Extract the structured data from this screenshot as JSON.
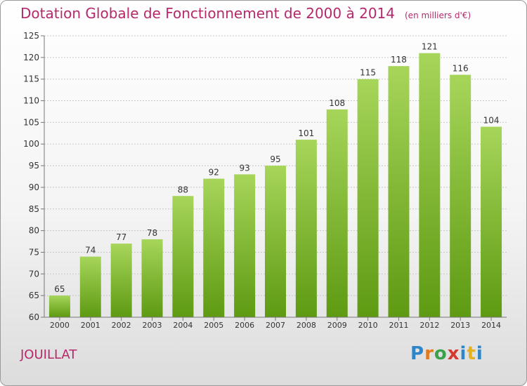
{
  "header": {
    "title": "Dotation Globale de Fonctionnement de 2000 à 2014",
    "subtitle": "(en milliers d'€)"
  },
  "footer": {
    "commune": "JOUILLAT",
    "brand": "Proxiti"
  },
  "colors": {
    "title": "#b5286a",
    "bar_top": "#a6d55a",
    "bar_bottom": "#5e9a12",
    "grid": "#c8c8c8"
  },
  "chart_data": {
    "type": "bar",
    "categories": [
      "2000",
      "2001",
      "2002",
      "2003",
      "2004",
      "2005",
      "2006",
      "2007",
      "2008",
      "2009",
      "2010",
      "2011",
      "2012",
      "2013",
      "2014"
    ],
    "values": [
      65,
      74,
      77,
      78,
      88,
      92,
      93,
      95,
      101,
      108,
      115,
      118,
      121,
      116,
      104
    ],
    "ylim": [
      60,
      125
    ],
    "yticks": [
      60,
      65,
      70,
      75,
      80,
      85,
      90,
      95,
      100,
      105,
      110,
      115,
      120,
      125
    ],
    "grid": true,
    "data_labels": true
  }
}
